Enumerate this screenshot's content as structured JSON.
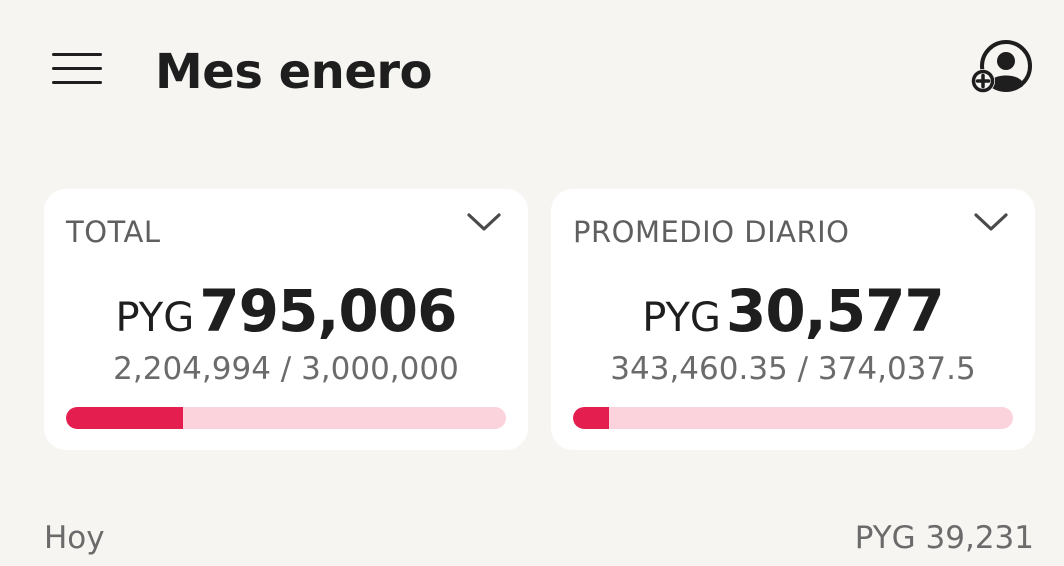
{
  "header": {
    "title": "Mes enero",
    "menu_icon": "hamburger-menu-icon",
    "add_user_icon": "person-add-icon"
  },
  "cards": {
    "total": {
      "label": "TOTAL",
      "currency": "PYG",
      "value": "795,006",
      "detail": "2,204,994 / 3,000,000",
      "progress": 0.265
    },
    "daily": {
      "label": "PROMEDIO DIARIO",
      "currency": "PYG",
      "value": "30,577",
      "detail": "343,460.35 / 374,037.5",
      "progress": 0.082
    }
  },
  "today": {
    "label": "Hoy",
    "amount": "PYG 39,231"
  },
  "colors": {
    "accent": "#e41e4f",
    "track": "#fbd3dc",
    "background": "#f6f5f2",
    "card": "#ffffff"
  }
}
